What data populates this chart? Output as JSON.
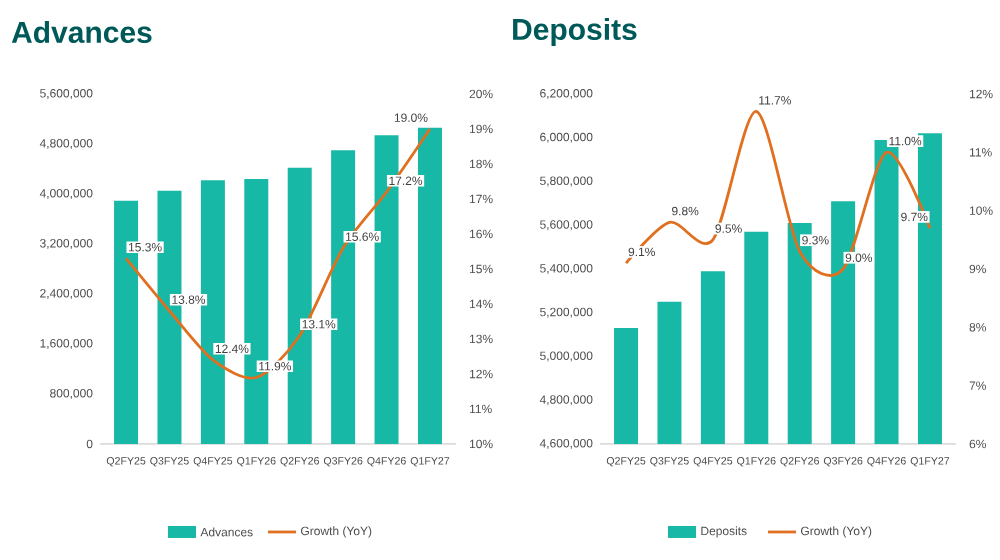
{
  "chart_data": [
    {
      "type": "bar",
      "title": "Advances",
      "categories": [
        "Q2FY25",
        "Q3FY25",
        "Q4FY25",
        "Q1FY26",
        "Q2FY26",
        "Q3FY26",
        "Q4FY26",
        "Q1FY27"
      ],
      "series": [
        {
          "name": "Advances",
          "color": "#17b8a6",
          "values": [
            3890000,
            4050000,
            4220000,
            4240000,
            4420000,
            4700000,
            4940000,
            5060000
          ]
        },
        {
          "name": "Growth (YoY)",
          "type": "line",
          "axis": "y2",
          "color": "#e07020",
          "values": [
            15.3,
            13.8,
            12.4,
            11.9,
            13.1,
            15.6,
            17.2,
            19.0
          ],
          "value_labels": [
            "15.3%",
            "13.8%",
            "12.4%",
            "11.9%",
            "13.1%",
            "15.6%",
            "17.2%",
            "19.0%"
          ]
        }
      ],
      "ylim": [
        0,
        5600000
      ],
      "yticks": [
        0,
        {
          "value": 800000,
          "label": "800,000"
        },
        {
          "value": 1600000,
          "label": "1,600,000"
        },
        {
          "value": 2400000,
          "label": "2,400,000"
        },
        {
          "value": 3200000,
          "label": "3,200,000"
        },
        {
          "value": 4000000,
          "label": "4,000,000"
        },
        {
          "value": 4800000,
          "label": "4,800,000"
        },
        {
          "value": 5600000,
          "label": "5,600,000"
        }
      ],
      "y2lim": [
        10,
        20
      ],
      "y2ticks": [
        {
          "value": 10,
          "label": "10%"
        },
        {
          "value": 11,
          "label": "11%"
        },
        {
          "value": 12,
          "label": "12%"
        },
        {
          "value": 13,
          "label": "13%"
        },
        {
          "value": 14,
          "label": "14%"
        },
        {
          "value": 15,
          "label": "15%"
        },
        {
          "value": 16,
          "label": "16%"
        },
        {
          "value": 17,
          "label": "17%"
        },
        {
          "value": 18,
          "label": "18%"
        },
        {
          "value": 19,
          "label": "19%"
        },
        {
          "value": 20,
          "label": "20%"
        }
      ],
      "legend": "bottom"
    },
    {
      "type": "bar",
      "title": "Deposits",
      "categories": [
        "Q2FY25",
        "Q3FY25",
        "Q4FY25",
        "Q1FY26",
        "Q2FY26",
        "Q3FY26",
        "Q4FY26",
        "Q1FY27"
      ],
      "series": [
        {
          "name": "Deposits",
          "color": "#17b8a6",
          "values": [
            5130000,
            5250000,
            5390000,
            5570000,
            5610000,
            5710000,
            5990000,
            6020000
          ]
        },
        {
          "name": "Growth (YoY)",
          "type": "line",
          "axis": "y2",
          "color": "#e07020",
          "values": [
            9.1,
            9.8,
            9.5,
            11.7,
            9.3,
            9.0,
            11.0,
            9.7
          ],
          "value_labels": [
            "9.1%",
            "9.8%",
            "9.5%",
            "11.7%",
            "9.3%",
            "9.0%",
            "11.0%",
            "9.7%"
          ]
        }
      ],
      "ylim": [
        4600000,
        6200000
      ],
      "yticks": [
        {
          "value": 4600000,
          "label": "4,600,000"
        },
        {
          "value": 4800000,
          "label": "4,800,000"
        },
        {
          "value": 5000000,
          "label": "5,000,000"
        },
        {
          "value": 5200000,
          "label": "5,200,000"
        },
        {
          "value": 5400000,
          "label": "5,400,000"
        },
        {
          "value": 5600000,
          "label": "5,600,000"
        },
        {
          "value": 5800000,
          "label": "5,800,000"
        },
        {
          "value": 6000000,
          "label": "6,000,000"
        },
        {
          "value": 6200000,
          "label": "6,200,000"
        }
      ],
      "y2lim": [
        6,
        12
      ],
      "y2ticks": [
        {
          "value": 6,
          "label": "6%"
        },
        {
          "value": 7,
          "label": "7%"
        },
        {
          "value": 8,
          "label": "8%"
        },
        {
          "value": 9,
          "label": "9%"
        },
        {
          "value": 10,
          "label": "10%"
        },
        {
          "value": 11,
          "label": "11%"
        },
        {
          "value": 12,
          "label": "12%"
        }
      ],
      "legend": "bottom"
    }
  ]
}
